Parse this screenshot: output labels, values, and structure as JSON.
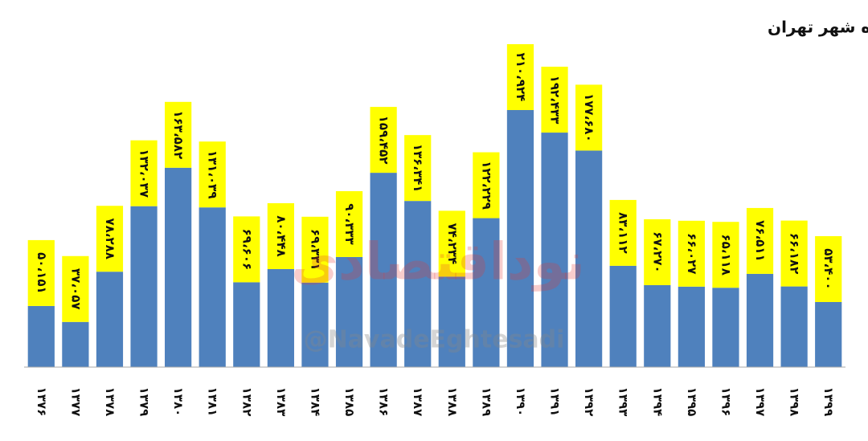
{
  "chart_data": {
    "type": "bar",
    "title": "تعداد واحدهای مسکونی ذکر شده در پروانه‌های ساختمانی صادر شده شهر تهران",
    "categories": [
      "۱۳۷۶",
      "۱۳۷۷",
      "۱۳۷۸",
      "۱۳۷۹",
      "۱۳۸۰",
      "۱۳۸۱",
      "۱۳۸۲",
      "۱۳۸۳",
      "۱۳۸۴",
      "۱۳۸۵",
      "۱۳۸۶",
      "۱۳۸۷",
      "۱۳۸۸",
      "۱۳۸۹",
      "۱۳۹۰",
      "۱۳۹۱",
      "۱۳۹۲",
      "۱۳۹۳",
      "۱۳۹۴",
      "۱۳۹۵",
      "۱۳۹۶",
      "۱۳۹۷",
      "۱۳۹۸",
      "۱۳۹۹"
    ],
    "values": [
      50151,
      37057,
      78288,
      132037,
      163582,
      131039,
      69606,
      80448,
      69331,
      90333,
      159452,
      136341,
      74234,
      122229,
      210924,
      192433,
      177680,
      83112,
      67270,
      66027,
      65118,
      76511,
      66182,
      53400
    ],
    "value_labels": [
      "۵۰،۱۵۱",
      "۳۷،۰۵۷",
      "۷۸،۲۸۸",
      "۱۳۲،۰۳۷",
      "۱۶۳،۵۸۲",
      "۱۳۱،۰۳۹",
      "۶۹،۶۰۶",
      "۸۰،۴۴۸",
      "۶۹،۳۳۱",
      "۹۰،۳۳۳",
      "۱۵۹،۴۵۲",
      "۱۳۶،۳۴۱",
      "۷۴،۲۳۴",
      "۱۲۲،۲۲۹",
      "۲۱۰،۹۲۴",
      "۱۹۲،۴۳۳",
      "۱۷۷،۶۸۰",
      "۸۳،۱۱۲",
      "۶۷،۲۷۰",
      "۶۶،۰۲۷",
      "۶۵،۱۱۸",
      "۷۶،۵۱۱",
      "۶۶،۱۸۲",
      "۵۳،۴۰۰"
    ],
    "color": "#4f81bd",
    "label_box_color": "#ffff00",
    "watermark": "@NavadeEghtesadi",
    "logo_text": "نوداقتصادی"
  }
}
